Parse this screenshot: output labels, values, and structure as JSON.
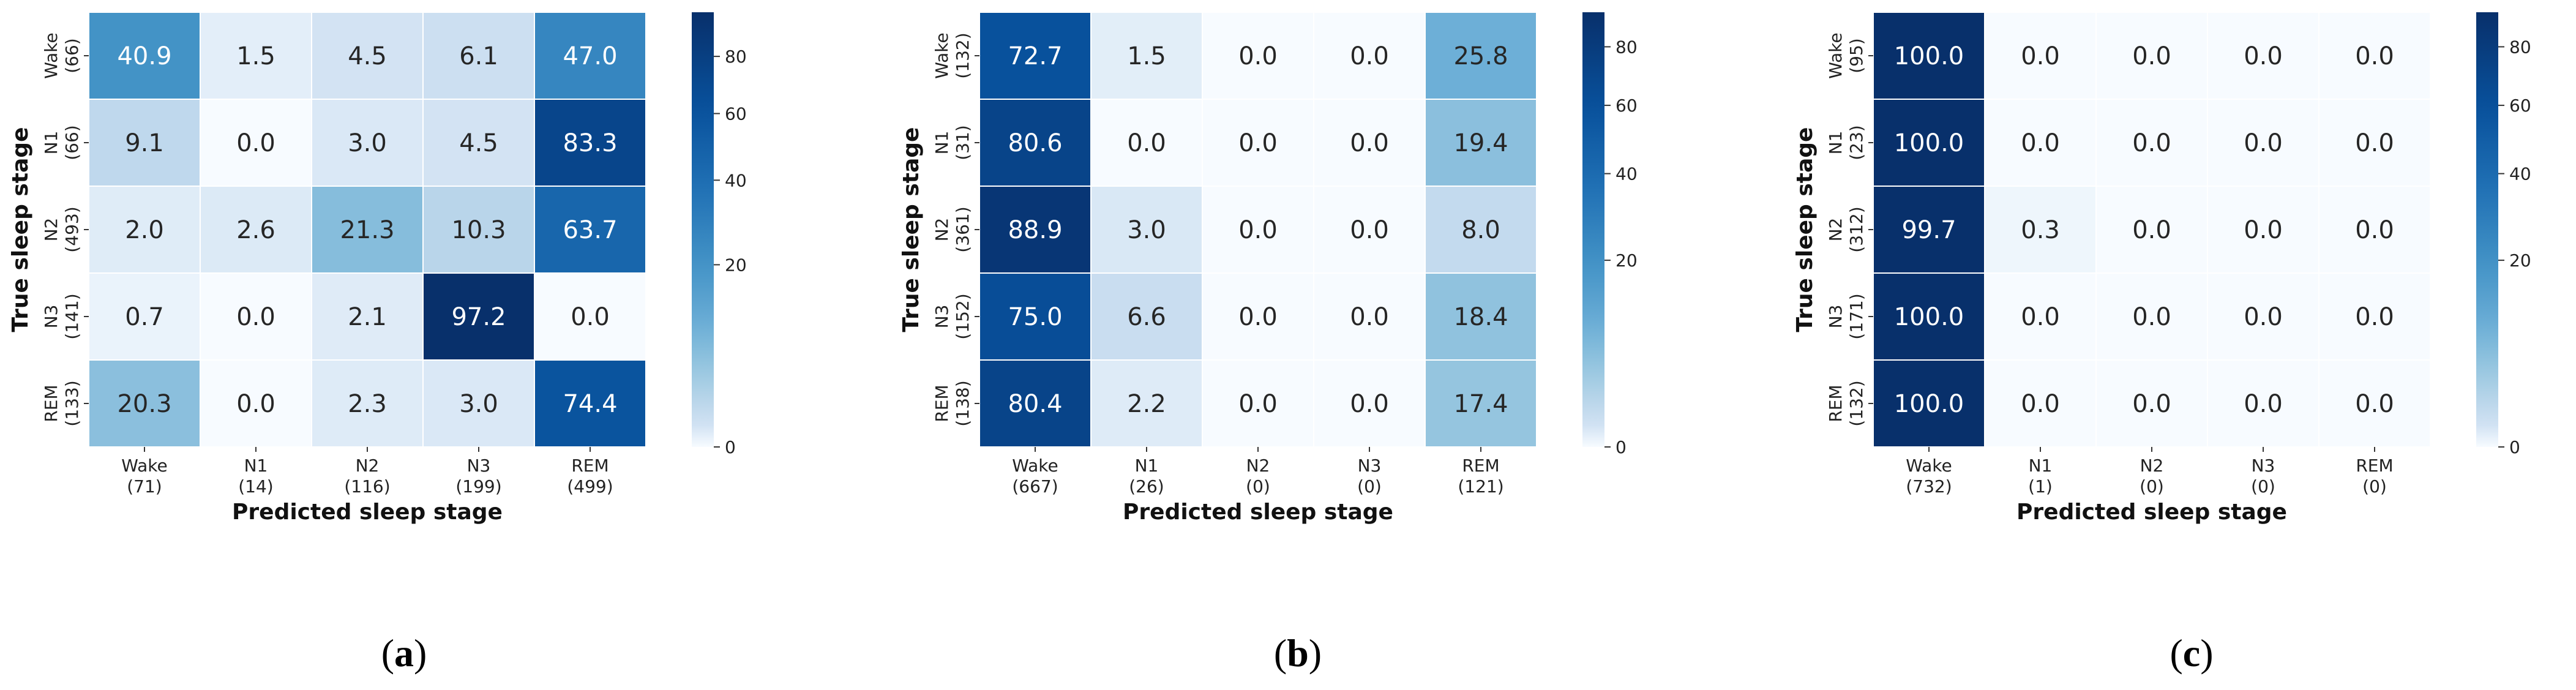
{
  "chart_data": [
    {
      "type": "heatmap",
      "panel_label": "a",
      "ylabel": "True sleep stage",
      "xlabel": "Predicted sleep stage",
      "rows": [
        {
          "name": "Wake",
          "count": "(66)"
        },
        {
          "name": "N1",
          "count": "(66)"
        },
        {
          "name": "N2",
          "count": "(493)"
        },
        {
          "name": "N3",
          "count": "(141)"
        },
        {
          "name": "REM",
          "count": "(133)"
        }
      ],
      "columns": [
        {
          "name": "Wake",
          "count": "(71)"
        },
        {
          "name": "N1",
          "count": "(14)"
        },
        {
          "name": "N2",
          "count": "(116)"
        },
        {
          "name": "N3",
          "count": "(199)"
        },
        {
          "name": "REM",
          "count": "(499)"
        }
      ],
      "values": [
        [
          "40.9",
          "1.5",
          "4.5",
          "6.1",
          "47.0"
        ],
        [
          "9.1",
          "0.0",
          "3.0",
          "4.5",
          "83.3"
        ],
        [
          "2.0",
          "2.6",
          "21.3",
          "10.3",
          "63.7"
        ],
        [
          "0.7",
          "0.0",
          "2.1",
          "97.2",
          "0.0"
        ],
        [
          "20.3",
          "0.0",
          "2.3",
          "3.0",
          "74.4"
        ]
      ],
      "colorbar_ticks": [
        "0",
        "20",
        "40",
        "60",
        "80"
      ],
      "colorbar_range": [
        0,
        97.2
      ]
    },
    {
      "type": "heatmap",
      "panel_label": "b",
      "ylabel": "True sleep stage",
      "xlabel": "Predicted sleep stage",
      "rows": [
        {
          "name": "Wake",
          "count": "(132)"
        },
        {
          "name": "N1",
          "count": "(31)"
        },
        {
          "name": "N2",
          "count": "(361)"
        },
        {
          "name": "N3",
          "count": "(152)"
        },
        {
          "name": "REM",
          "count": "(138)"
        }
      ],
      "columns": [
        {
          "name": "Wake",
          "count": "(667)"
        },
        {
          "name": "N1",
          "count": "(26)"
        },
        {
          "name": "N2",
          "count": "(0)"
        },
        {
          "name": "N3",
          "count": "(0)"
        },
        {
          "name": "REM",
          "count": "(121)"
        }
      ],
      "values": [
        [
          "72.7",
          "1.5",
          "0.0",
          "0.0",
          "25.8"
        ],
        [
          "80.6",
          "0.0",
          "0.0",
          "0.0",
          "19.4"
        ],
        [
          "88.9",
          "3.0",
          "0.0",
          "0.0",
          "8.0"
        ],
        [
          "75.0",
          "6.6",
          "0.0",
          "0.0",
          "18.4"
        ],
        [
          "80.4",
          "2.2",
          "0.0",
          "0.0",
          "17.4"
        ]
      ],
      "colorbar_ticks": [
        "0",
        "20",
        "40",
        "60",
        "80"
      ],
      "colorbar_range": [
        0,
        93
      ]
    },
    {
      "type": "heatmap",
      "panel_label": "c",
      "ylabel": "True sleep stage",
      "xlabel": "Predicted sleep stage",
      "rows": [
        {
          "name": "Wake",
          "count": "(95)"
        },
        {
          "name": "N1",
          "count": "(23)"
        },
        {
          "name": "N2",
          "count": "(312)"
        },
        {
          "name": "N3",
          "count": "(171)"
        },
        {
          "name": "REM",
          "count": "(132)"
        }
      ],
      "columns": [
        {
          "name": "Wake",
          "count": "(732)"
        },
        {
          "name": "N1",
          "count": "(1)"
        },
        {
          "name": "N2",
          "count": "(0)"
        },
        {
          "name": "N3",
          "count": "(0)"
        },
        {
          "name": "REM",
          "count": "(0)"
        }
      ],
      "values": [
        [
          "100.0",
          "0.0",
          "0.0",
          "0.0",
          "0.0"
        ],
        [
          "100.0",
          "0.0",
          "0.0",
          "0.0",
          "0.0"
        ],
        [
          "99.7",
          "0.3",
          "0.0",
          "0.0",
          "0.0"
        ],
        [
          "100.0",
          "0.0",
          "0.0",
          "0.0",
          "0.0"
        ],
        [
          "100.0",
          "0.0",
          "0.0",
          "0.0",
          "0.0"
        ]
      ],
      "colorbar_ticks": [
        "0",
        "20",
        "40",
        "60",
        "80"
      ],
      "colorbar_range": [
        0,
        93
      ]
    }
  ]
}
